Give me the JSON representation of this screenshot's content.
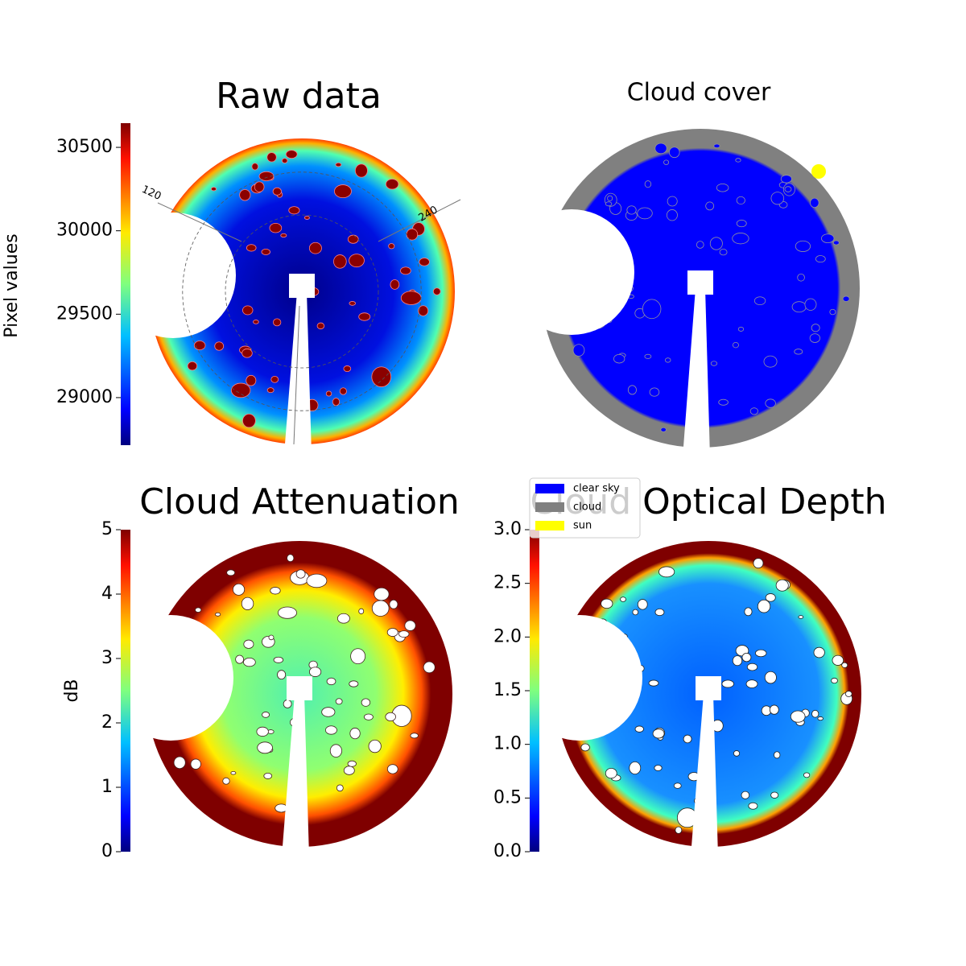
{
  "panels": [
    {
      "title": "Raw data",
      "colorbar": {
        "label": "Pixel values",
        "lim": [
          28715,
          30645
        ],
        "ticks": [
          29000,
          29500,
          30000,
          30500
        ]
      },
      "azimuth_labels": [
        "120",
        "240"
      ]
    },
    {
      "title": "Cloud cover",
      "legend": [
        {
          "label": "clear sky",
          "color": "#0000ff"
        },
        {
          "label": "cloud",
          "color": "#808080"
        },
        {
          "label": "sun",
          "color": "#ffff00"
        }
      ]
    },
    {
      "title": "Cloud Attenuation",
      "colorbar": {
        "label": "dB",
        "lim": [
          0,
          5
        ],
        "ticks": [
          0,
          1,
          2,
          3,
          4,
          5
        ]
      }
    },
    {
      "title": "Cloud Optical Depth",
      "colorbar": {
        "lim": [
          0,
          3
        ],
        "ticks": [
          {
            "value": 0,
            "label": "0.0"
          },
          0.5,
          {
            "value": 1,
            "label": "1.0"
          },
          1.5,
          {
            "value": 2,
            "label": "2.0"
          },
          2.5,
          {
            "value": 3,
            "label": "3.0"
          }
        ]
      }
    }
  ]
}
